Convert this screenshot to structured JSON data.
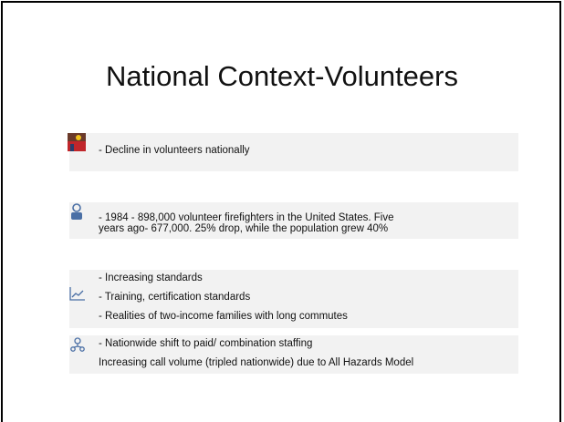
{
  "title": "National Context-Volunteers",
  "items": [
    {
      "lines": [
        "- Decline in volunteers nationally"
      ]
    },
    {
      "lines": [
        "- 1984 - 898,000 volunteer firefighters in the United States. Five",
        "years ago- 677,000. 25% drop, while the population grew 40%"
      ]
    },
    {
      "lines": [
        "- Increasing standards",
        "- Training, certification standards",
        "- Realities of two-income families with long commutes"
      ]
    },
    {
      "lines": [
        "- Nationwide shift to paid/ combination staffing",
        "Increasing call volume (tripled nationwide) due to All Hazards Model"
      ]
    }
  ]
}
